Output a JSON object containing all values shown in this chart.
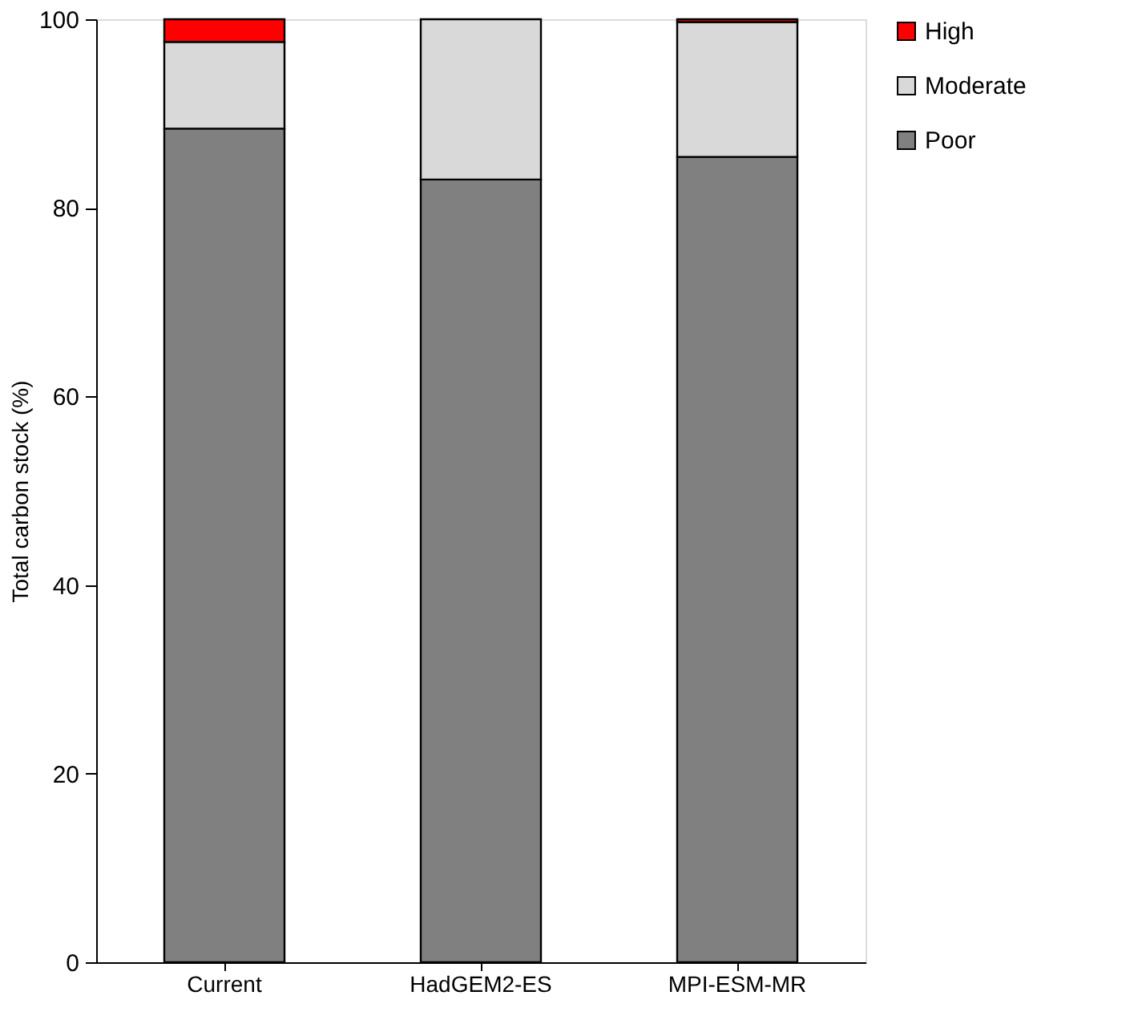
{
  "chart_data": {
    "type": "bar",
    "stacked": true,
    "ylabel": "Total carbon stock (%)",
    "categories": [
      "Current",
      "HadGEM2-ES",
      "MPI-ESM-MR"
    ],
    "series": [
      {
        "name": "Poor",
        "color": "#808080",
        "values": [
          88.4,
          83.0,
          85.4
        ]
      },
      {
        "name": "Moderate",
        "color": "#d9d9d9",
        "values": [
          9.2,
          17.0,
          14.3
        ]
      },
      {
        "name": "High",
        "color": "#ff0000",
        "values": [
          2.4,
          null,
          0.3
        ]
      }
    ],
    "ylim": [
      0,
      100
    ],
    "yticks": [
      0,
      20,
      40,
      60,
      80,
      100
    ],
    "grid": false,
    "legend": "right"
  }
}
